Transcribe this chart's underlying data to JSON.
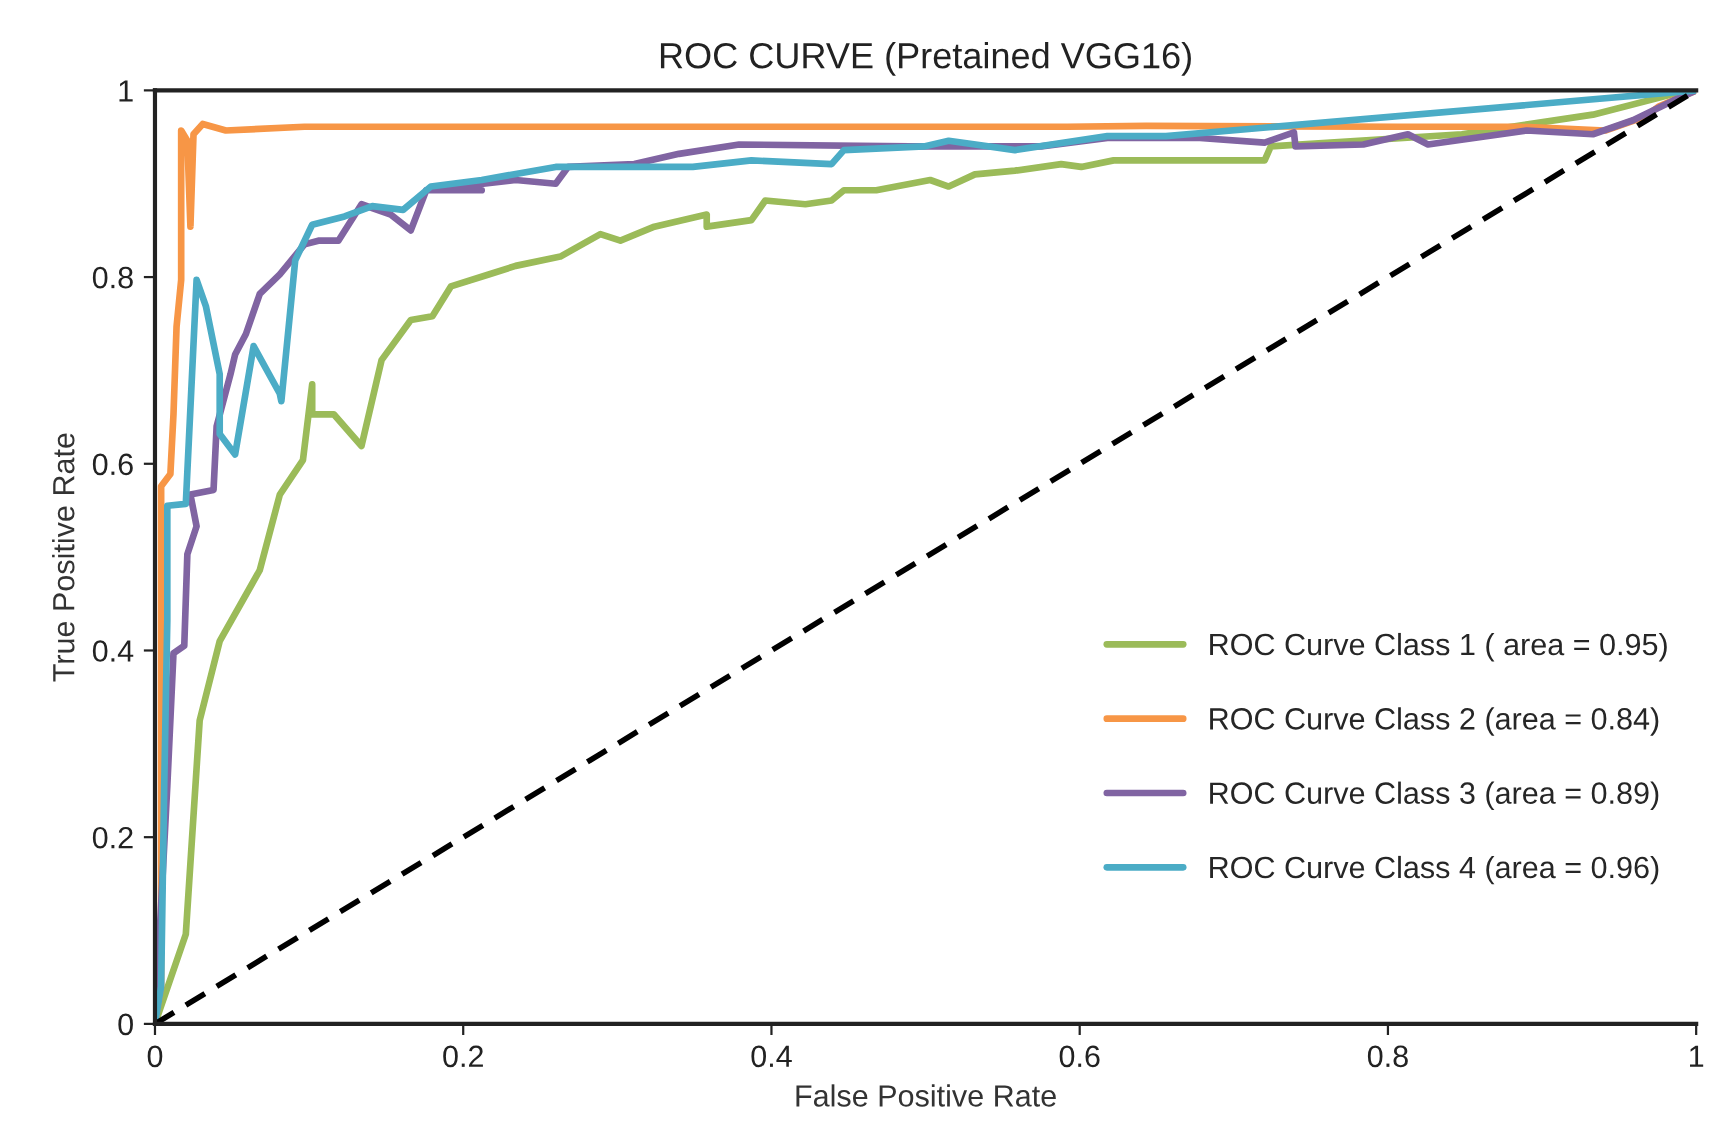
{
  "chart_data": {
    "type": "line",
    "title": "ROC CURVE (Pretained VGG16)",
    "xlabel": "False Positive Rate",
    "ylabel": "True Positive Rate",
    "xlim": [
      0,
      1
    ],
    "ylim": [
      0,
      1
    ],
    "xticks": [
      0,
      0.2,
      0.4,
      0.6,
      0.8,
      1
    ],
    "yticks": [
      0,
      0.2,
      0.4,
      0.6,
      0.8,
      1
    ],
    "grid": false,
    "legend": "bottom right",
    "marker": "none",
    "line_style": "solid",
    "series": [
      {
        "name": "ROC Curve Class 1 ( area = 0.95)",
        "color": "#9bbb59",
        "x": [
          0,
          0.02,
          0.029,
          0.042,
          0.068,
          0.081,
          0.096,
          0.102,
          0.102,
          0.116,
          0.134,
          0.147,
          0.166,
          0.18,
          0.192,
          0.217,
          0.234,
          0.263,
          0.289,
          0.302,
          0.324,
          0.358,
          0.358,
          0.387,
          0.396,
          0.422,
          0.439,
          0.447,
          0.468,
          0.503,
          0.515,
          0.532,
          0.558,
          0.588,
          0.601,
          0.622,
          0.72,
          0.724,
          0.848,
          0.933,
          0.985,
          1
        ],
        "values": [
          0,
          0.096,
          0.325,
          0.41,
          0.486,
          0.567,
          0.604,
          0.685,
          0.653,
          0.653,
          0.619,
          0.711,
          0.754,
          0.758,
          0.79,
          0.803,
          0.812,
          0.822,
          0.846,
          0.839,
          0.854,
          0.867,
          0.854,
          0.861,
          0.882,
          0.878,
          0.882,
          0.893,
          0.893,
          0.904,
          0.897,
          0.91,
          0.914,
          0.921,
          0.918,
          0.925,
          0.925,
          0.94,
          0.953,
          0.974,
          0.996,
          1
        ]
      },
      {
        "name": "ROC Curve Class 2 (area = 0.84)",
        "color": "#f79646",
        "x": [
          0,
          0.004,
          0.004,
          0.004,
          0.01,
          0.012,
          0.014,
          0.017,
          0.017,
          0.021,
          0.023,
          0.025,
          0.031,
          0.046,
          0.097,
          0.3,
          0.592,
          0.643,
          0.806,
          0.886,
          0.941,
          0.967,
          0.976,
          1
        ],
        "values": [
          0,
          0.04,
          0.503,
          0.576,
          0.589,
          0.653,
          0.747,
          0.797,
          0.957,
          0.946,
          0.854,
          0.953,
          0.964,
          0.957,
          0.961,
          0.961,
          0.961,
          0.962,
          0.961,
          0.961,
          0.957,
          0.972,
          0.983,
          1
        ]
      },
      {
        "name": "ROC Curve Class 3 (area = 0.89)",
        "color": "#8064a2",
        "x": [
          0,
          0.008,
          0.012,
          0.019,
          0.021,
          0.027,
          0.023,
          0.038,
          0.04,
          0.049,
          0.052,
          0.059,
          0.068,
          0.081,
          0.097,
          0.106,
          0.119,
          0.134,
          0.153,
          0.166,
          0.176,
          0.212,
          0.176,
          0.234,
          0.26,
          0.268,
          0.311,
          0.34,
          0.379,
          0.49,
          0.575,
          0.618,
          0.678,
          0.72,
          0.739,
          0.74,
          0.784,
          0.813,
          0.826,
          0.89,
          0.933,
          0.959,
          0.985,
          1
        ],
        "values": [
          0,
          0.255,
          0.397,
          0.405,
          0.503,
          0.533,
          0.567,
          0.572,
          0.64,
          0.696,
          0.717,
          0.739,
          0.782,
          0.803,
          0.835,
          0.839,
          0.839,
          0.878,
          0.867,
          0.85,
          0.893,
          0.893,
          0.893,
          0.904,
          0.9,
          0.918,
          0.921,
          0.932,
          0.942,
          0.94,
          0.94,
          0.949,
          0.949,
          0.944,
          0.955,
          0.94,
          0.942,
          0.953,
          0.942,
          0.957,
          0.953,
          0.968,
          0.989,
          1
        ]
      },
      {
        "name": "ROC Curve Class 4 (area = 0.96)",
        "color": "#4bacc6",
        "x": [
          0,
          0.004,
          0.006,
          0.008,
          0.008,
          0.02,
          0.027,
          0.033,
          0.042,
          0.042,
          0.052,
          0.064,
          0.081,
          0.082,
          0.091,
          0.102,
          0.123,
          0.141,
          0.161,
          0.179,
          0.212,
          0.26,
          0.32,
          0.349,
          0.387,
          0.439,
          0.447,
          0.499,
          0.515,
          0.558,
          0.618,
          0.656,
          1
        ],
        "values": [
          0,
          0.04,
          0.255,
          0.432,
          0.555,
          0.557,
          0.797,
          0.769,
          0.696,
          0.632,
          0.61,
          0.726,
          0.675,
          0.667,
          0.818,
          0.856,
          0.865,
          0.876,
          0.872,
          0.897,
          0.904,
          0.918,
          0.918,
          0.918,
          0.925,
          0.921,
          0.936,
          0.94,
          0.946,
          0.936,
          0.951,
          0.951,
          1
        ]
      },
      {
        "color": "#000000",
        "line_style": "dashed",
        "x": [
          0,
          1
        ],
        "values": [
          0,
          1
        ]
      }
    ]
  }
}
